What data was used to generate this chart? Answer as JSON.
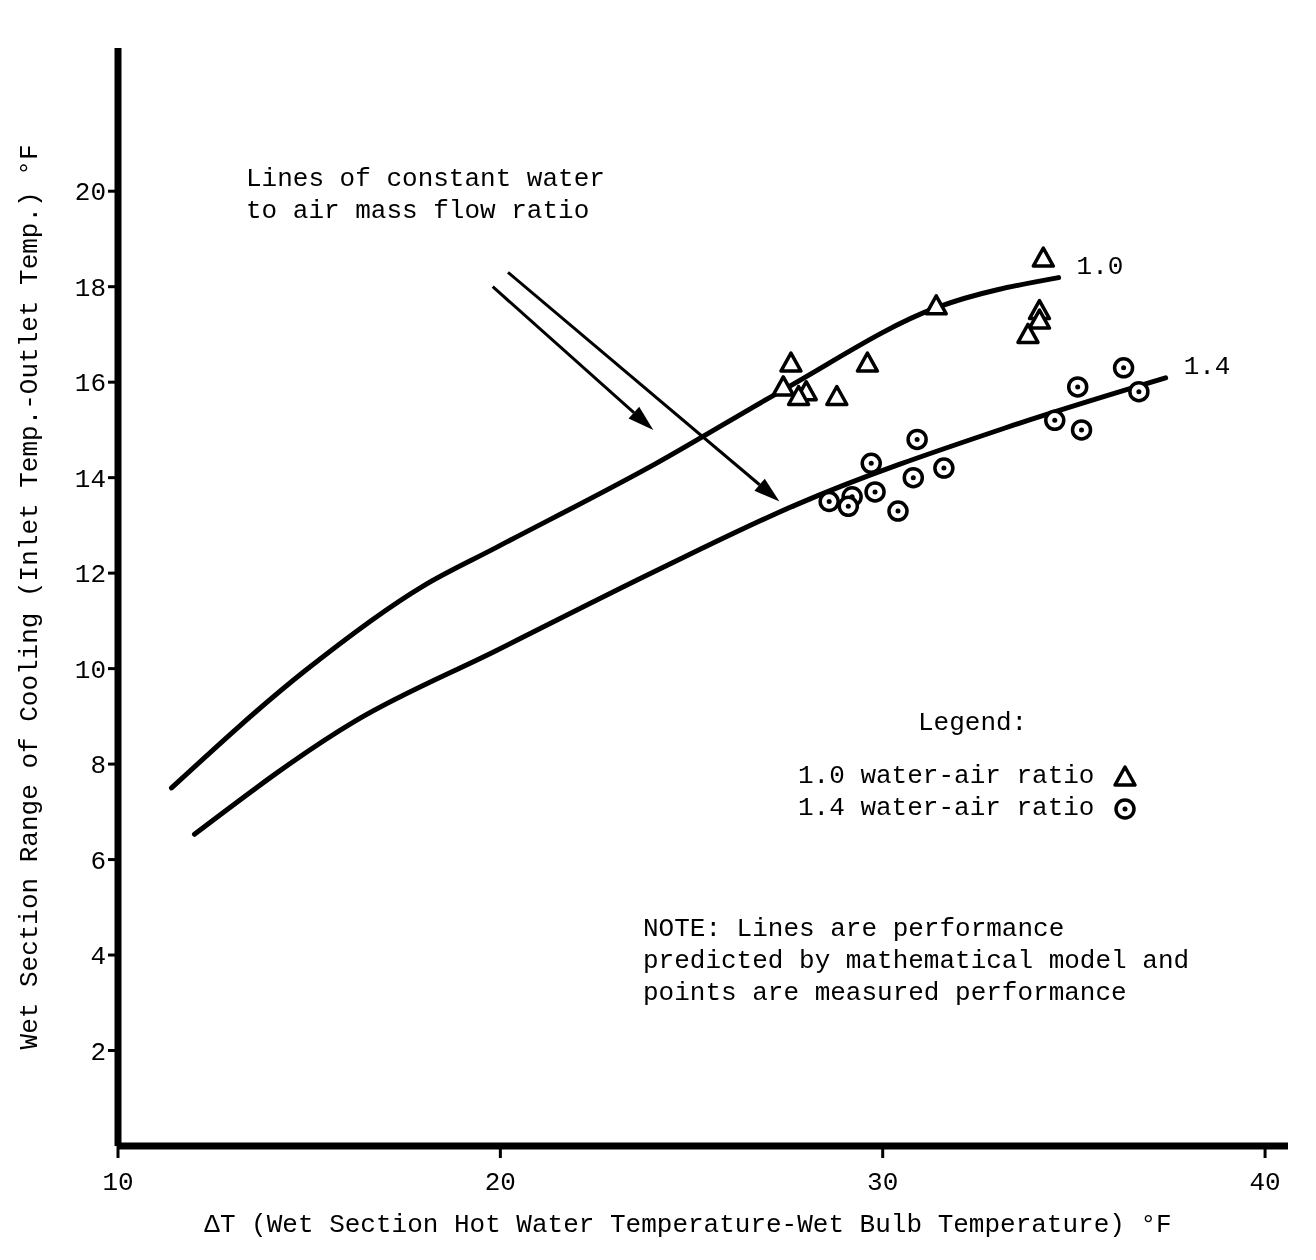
{
  "chart_data": {
    "type": "scatter",
    "xlabel": "ΔT (Wet Section Hot Water Temperature-Wet Bulb Temperature) °F",
    "ylabel": "Wet Section Range of Cooling (Inlet Temp.-Outlet Temp.) °F",
    "legend_title": "Legend:",
    "legend": "right",
    "grid": false,
    "xlim": [
      10,
      40.6
    ],
    "xticks": [
      10,
      20,
      30,
      40
    ],
    "ylim": [
      0,
      23
    ],
    "yticks": [
      2,
      4,
      6,
      8,
      10,
      12,
      14,
      16,
      18,
      20
    ],
    "series": [
      {
        "name": "1.0",
        "type": "line",
        "color": "#000000",
        "marker": "none",
        "x": [
          11.4,
          14.9,
          18.0,
          19.9,
          24.1,
          27.4,
          31.4,
          34.6
        ],
        "values": [
          7.5,
          9.96,
          11.74,
          12.54,
          14.31,
          15.84,
          17.56,
          18.19
        ]
      },
      {
        "name": "1.4",
        "type": "line",
        "color": "#000000",
        "marker": "none",
        "x": [
          12.0,
          16.2,
          19.9,
          24.1,
          27.7,
          33.2,
          37.4
        ],
        "values": [
          6.53,
          8.9,
          10.38,
          12.06,
          13.42,
          15.04,
          16.09
        ]
      },
      {
        "name": "1.0 water-air ratio",
        "color": "#000000",
        "marker": "triangle",
        "x": [
          34.2,
          31.4,
          34.1,
          34.1,
          33.8,
          29.6,
          27.6,
          27.4,
          28.0,
          27.8,
          28.8
        ],
        "values": [
          18.6,
          17.6,
          17.5,
          17.3,
          17.0,
          16.4,
          16.4,
          15.9,
          15.8,
          15.7,
          15.7
        ]
      },
      {
        "name": "1.4 water-air ratio",
        "color": "#000000",
        "marker": "circle",
        "x": [
          36.3,
          35.1,
          36.7,
          34.5,
          35.2,
          30.9,
          29.7,
          31.6,
          30.8,
          29.8,
          29.2,
          28.6,
          29.1,
          30.4
        ],
        "values": [
          16.3,
          15.9,
          15.8,
          15.2,
          15.0,
          14.8,
          14.3,
          14.2,
          14.0,
          13.7,
          13.6,
          13.5,
          13.4,
          13.3
        ]
      }
    ],
    "annotations": [
      "Lines of constant water to air mass flow ratio",
      "NOTE: Lines are performance predicted by mathematical model and points are measured performance"
    ]
  }
}
